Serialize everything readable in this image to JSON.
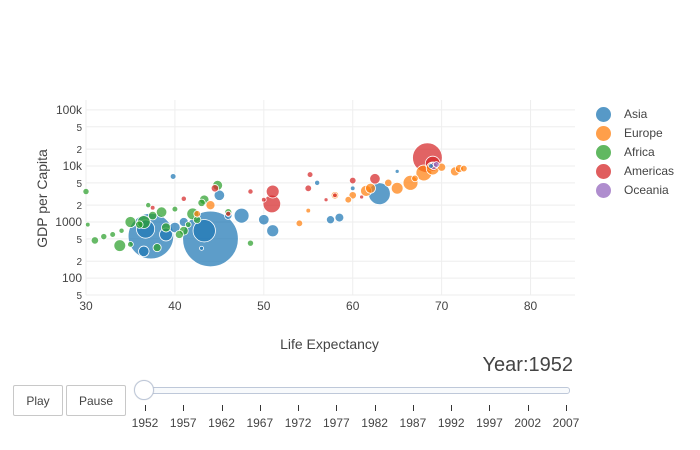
{
  "chart_data": {
    "type": "scatter",
    "title": "",
    "xlabel": "Life Expectancy",
    "ylabel": "GDP per Capita",
    "xlim": [
      30,
      85
    ],
    "ylim": [
      50,
      150000
    ],
    "y_scale": "log",
    "grid": true,
    "legend_position": "right",
    "x_ticks": [
      "30",
      "40",
      "50",
      "60",
      "70",
      "80"
    ],
    "x_tick_values": [
      30,
      40,
      50,
      60,
      70,
      80
    ],
    "y_ticks": [
      "100k",
      "5",
      "2",
      "10k",
      "5",
      "2",
      "1000",
      "5",
      "2",
      "100",
      "5"
    ],
    "y_tick_values": [
      100000,
      50000,
      20000,
      10000,
      5000,
      2000,
      1000,
      500,
      200,
      100,
      50
    ],
    "series": [
      {
        "name": "Asia",
        "color": "#1f77b4",
        "points": [
          {
            "x": 44.0,
            "y": 500,
            "size": 556
          },
          {
            "x": 37.3,
            "y": 560,
            "size": 372
          },
          {
            "x": 43.3,
            "y": 700,
            "size": 90
          },
          {
            "x": 63.0,
            "y": 3200,
            "size": 86
          },
          {
            "x": 36.7,
            "y": 750,
            "size": 60
          },
          {
            "x": 45.0,
            "y": 3000,
            "size": 20
          },
          {
            "x": 47.5,
            "y": 1300,
            "size": 40
          },
          {
            "x": 51.0,
            "y": 700,
            "size": 26
          },
          {
            "x": 50.0,
            "y": 1100,
            "size": 20
          },
          {
            "x": 36.5,
            "y": 300,
            "size": 20
          },
          {
            "x": 39.0,
            "y": 600,
            "size": 30
          },
          {
            "x": 40.0,
            "y": 800,
            "size": 20
          },
          {
            "x": 41.0,
            "y": 1000,
            "size": 15
          },
          {
            "x": 57.5,
            "y": 1100,
            "size": 12
          },
          {
            "x": 58.5,
            "y": 1200,
            "size": 14
          },
          {
            "x": 46.0,
            "y": 1300,
            "size": 10
          },
          {
            "x": 39.8,
            "y": 6500,
            "size": 6
          },
          {
            "x": 56.0,
            "y": 5000,
            "size": 5
          },
          {
            "x": 60.0,
            "y": 4000,
            "size": 4
          },
          {
            "x": 65.0,
            "y": 8000,
            "size": 3
          },
          {
            "x": 43.0,
            "y": 340,
            "size": 3
          },
          {
            "x": 68.8,
            "y": 10000,
            "size": 4
          }
        ]
      },
      {
        "name": "Europe",
        "color": "#ff7f0e",
        "points": [
          {
            "x": 68.0,
            "y": 7500,
            "size": 45
          },
          {
            "x": 66.5,
            "y": 5000,
            "size": 40
          },
          {
            "x": 69.0,
            "y": 9000,
            "size": 30
          },
          {
            "x": 65.0,
            "y": 4000,
            "size": 25
          },
          {
            "x": 61.5,
            "y": 3600,
            "size": 22
          },
          {
            "x": 62.0,
            "y": 4000,
            "size": 18
          },
          {
            "x": 71.5,
            "y": 8000,
            "size": 15
          },
          {
            "x": 72.0,
            "y": 9000,
            "size": 12
          },
          {
            "x": 70.0,
            "y": 9500,
            "size": 12
          },
          {
            "x": 60.0,
            "y": 3000,
            "size": 10
          },
          {
            "x": 58.0,
            "y": 3000,
            "size": 10
          },
          {
            "x": 64.0,
            "y": 5000,
            "size": 10
          },
          {
            "x": 72.5,
            "y": 9000,
            "size": 8
          },
          {
            "x": 67.0,
            "y": 6000,
            "size": 8
          },
          {
            "x": 44.0,
            "y": 2000,
            "size": 15
          },
          {
            "x": 54.0,
            "y": 950,
            "size": 8
          },
          {
            "x": 59.5,
            "y": 2500,
            "size": 8
          },
          {
            "x": 42.5,
            "y": 1400,
            "size": 8
          },
          {
            "x": 55.0,
            "y": 1600,
            "size": 4
          }
        ]
      },
      {
        "name": "Africa",
        "color": "#2ca02c",
        "points": [
          {
            "x": 36.5,
            "y": 1000,
            "size": 30
          },
          {
            "x": 42.0,
            "y": 1400,
            "size": 25
          },
          {
            "x": 33.8,
            "y": 380,
            "size": 25
          },
          {
            "x": 35.0,
            "y": 1000,
            "size": 22
          },
          {
            "x": 38.5,
            "y": 1500,
            "size": 20
          },
          {
            "x": 44.8,
            "y": 4500,
            "size": 18
          },
          {
            "x": 43.3,
            "y": 2500,
            "size": 16
          },
          {
            "x": 39.0,
            "y": 800,
            "size": 15
          },
          {
            "x": 41.0,
            "y": 700,
            "size": 14
          },
          {
            "x": 37.5,
            "y": 1300,
            "size": 13
          },
          {
            "x": 38.0,
            "y": 350,
            "size": 12
          },
          {
            "x": 40.5,
            "y": 600,
            "size": 12
          },
          {
            "x": 31.0,
            "y": 470,
            "size": 10
          },
          {
            "x": 36.0,
            "y": 900,
            "size": 10
          },
          {
            "x": 42.5,
            "y": 1100,
            "size": 10
          },
          {
            "x": 43.0,
            "y": 2200,
            "size": 10
          },
          {
            "x": 46.0,
            "y": 1500,
            "size": 9
          },
          {
            "x": 48.5,
            "y": 420,
            "size": 7
          },
          {
            "x": 30.0,
            "y": 3500,
            "size": 7
          },
          {
            "x": 32.0,
            "y": 550,
            "size": 7
          },
          {
            "x": 33.0,
            "y": 600,
            "size": 6
          },
          {
            "x": 35.0,
            "y": 400,
            "size": 6
          },
          {
            "x": 40.0,
            "y": 1700,
            "size": 6
          },
          {
            "x": 41.5,
            "y": 900,
            "size": 6
          },
          {
            "x": 37.0,
            "y": 2000,
            "size": 5
          },
          {
            "x": 34.0,
            "y": 700,
            "size": 5
          },
          {
            "x": 30.2,
            "y": 900,
            "size": 4
          }
        ]
      },
      {
        "name": "Americas",
        "color": "#d62728",
        "points": [
          {
            "x": 68.4,
            "y": 14000,
            "size": 159
          },
          {
            "x": 50.9,
            "y": 2100,
            "size": 56
          },
          {
            "x": 69.0,
            "y": 11000,
            "size": 40
          },
          {
            "x": 51.0,
            "y": 3500,
            "size": 30
          },
          {
            "x": 62.5,
            "y": 5900,
            "size": 20
          },
          {
            "x": 44.5,
            "y": 4000,
            "size": 10
          },
          {
            "x": 55.0,
            "y": 4000,
            "size": 8
          },
          {
            "x": 60.0,
            "y": 5500,
            "size": 8
          },
          {
            "x": 55.2,
            "y": 7000,
            "size": 6
          },
          {
            "x": 48.5,
            "y": 3500,
            "size": 5
          },
          {
            "x": 41.0,
            "y": 2600,
            "size": 5
          },
          {
            "x": 46.0,
            "y": 1400,
            "size": 5
          },
          {
            "x": 50.0,
            "y": 2500,
            "size": 4
          },
          {
            "x": 58.0,
            "y": 3000,
            "size": 4
          },
          {
            "x": 37.5,
            "y": 1800,
            "size": 4
          },
          {
            "x": 57.0,
            "y": 2500,
            "size": 3
          },
          {
            "x": 61.0,
            "y": 2800,
            "size": 3
          }
        ]
      },
      {
        "name": "Oceania",
        "color": "#9467bd",
        "points": [
          {
            "x": 69.1,
            "y": 10000,
            "size": 10
          },
          {
            "x": 69.4,
            "y": 10600,
            "size": 6
          }
        ]
      }
    ]
  },
  "year_label": "Year:1952",
  "controls": {
    "play_label": "Play",
    "pause_label": "Pause",
    "years": [
      "1952",
      "1957",
      "1962",
      "1967",
      "1972",
      "1977",
      "1982",
      "1987",
      "1992",
      "1997",
      "2002",
      "2007"
    ]
  }
}
